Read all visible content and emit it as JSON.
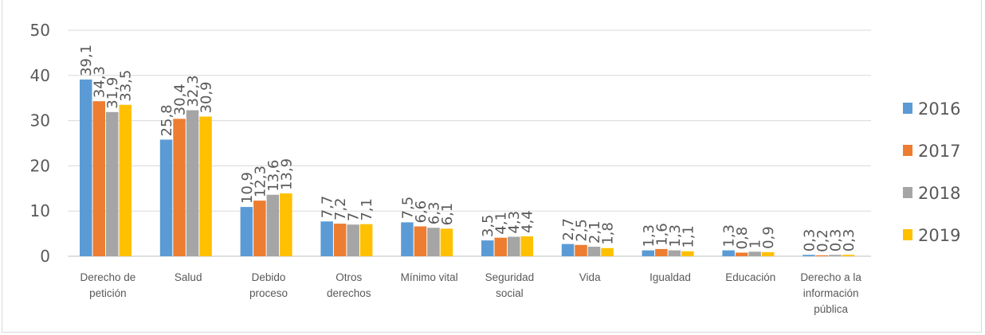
{
  "chart_data": {
    "type": "bar",
    "title": "",
    "xlabel": "",
    "ylabel": "",
    "ylim": [
      0,
      50
    ],
    "yticks": [
      0,
      10,
      20,
      30,
      40,
      50
    ],
    "grid": true,
    "legend_position": "right",
    "categories": [
      [
        "Derecho de",
        "petición"
      ],
      [
        "Salud"
      ],
      [
        "Debido",
        "proceso"
      ],
      [
        "Otros",
        "derechos"
      ],
      [
        "Mínimo vital"
      ],
      [
        "Seguridad",
        "social"
      ],
      [
        "Vida"
      ],
      [
        "Igualdad"
      ],
      [
        "Educación"
      ],
      [
        "Derecho a la",
        "información",
        "pública"
      ]
    ],
    "series": [
      {
        "name": "2016",
        "color": "#5b9bd5",
        "values": [
          39.1,
          25.8,
          10.9,
          7.7,
          7.5,
          3.5,
          2.7,
          1.3,
          1.3,
          0.3
        ],
        "labels": [
          "39,1",
          "25,8",
          "10,9",
          "7,7",
          "7,5",
          "3,5",
          "2,7",
          "1,3",
          "1,3",
          "0,3"
        ]
      },
      {
        "name": "2017",
        "color": "#ed7d31",
        "values": [
          34.3,
          30.4,
          12.3,
          7.2,
          6.6,
          4.1,
          2.5,
          1.6,
          0.8,
          0.2
        ],
        "labels": [
          "34,3",
          "30,4",
          "12,3",
          "7,2",
          "6,6",
          "4,1",
          "2,5",
          "1,6",
          "0,8",
          "0,2"
        ]
      },
      {
        "name": "2018",
        "color": "#a5a5a5",
        "values": [
          31.9,
          32.3,
          13.6,
          7,
          6.3,
          4.3,
          2.1,
          1.3,
          1,
          0.3
        ],
        "labels": [
          "31,9",
          "32,3",
          "13,6",
          "7",
          "6,3",
          "4,3",
          "2,1",
          "1,3",
          "1",
          "0,3"
        ]
      },
      {
        "name": "2019",
        "color": "#ffc000",
        "values": [
          33.5,
          30.9,
          13.9,
          7.1,
          6.1,
          4.4,
          1.8,
          1.1,
          0.9,
          0.3
        ],
        "labels": [
          "33,5",
          "30,9",
          "13,9",
          "7,1",
          "6,1",
          "4,4",
          "1,8",
          "1,1",
          "0,9",
          "0,3"
        ]
      }
    ]
  }
}
